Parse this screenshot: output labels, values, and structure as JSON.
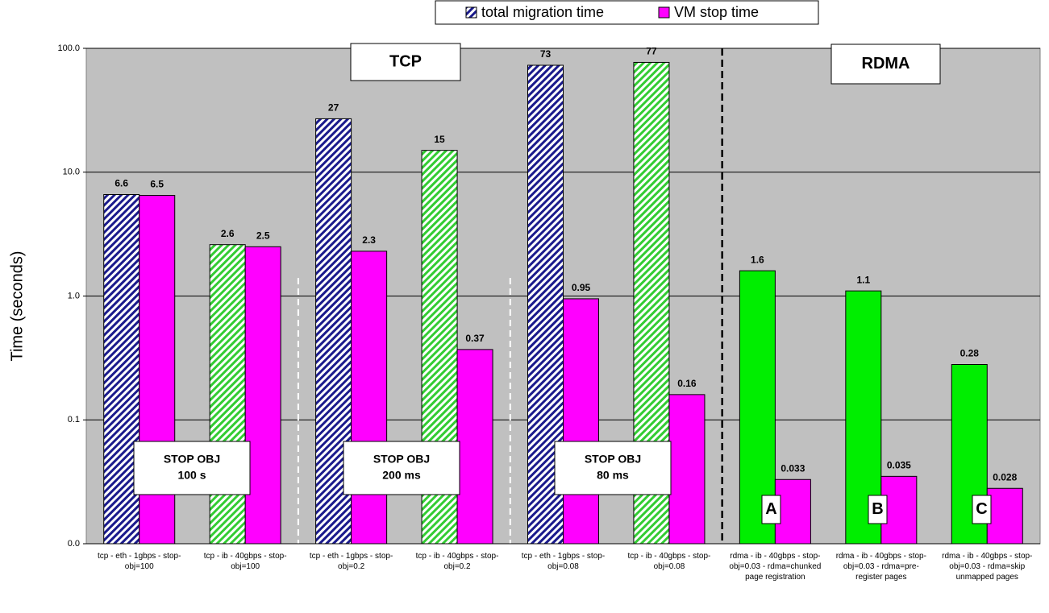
{
  "chart_data": {
    "type": "bar",
    "y_label": "Time  (seconds)",
    "categories": [
      "tcp - eth - 1gbps - stop-obj=100",
      "tcp - ib - 40gbps - stop-obj=100",
      "tcp - eth - 1gbps - stop-obj=0.2",
      "tcp - ib - 40gbps - stop-obj=0.2",
      "tcp - eth - 1gbps - stop-obj=0.08",
      "tcp - ib - 40gbps - stop-obj=0.08",
      "rdma - ib - 40gbps - stop-obj=0.03 - rdma=chunked page registration",
      "rdma - ib - 40gbps - stop-obj=0.03 - rdma=pre-register pages",
      "rdma - ib - 40gbps - stop-obj=0.03 - rdma=skip unmapped pages"
    ],
    "series": [
      {
        "name": "total migration time",
        "color": "#1a1a8c",
        "point_colors": [
          "#1a1a8c",
          "#33cc33",
          "#1a1a8c",
          "#33cc33",
          "#1a1a8c",
          "#33cc33",
          "#00ee00",
          "#00ee00",
          "#00ee00"
        ],
        "hatched": [
          true,
          true,
          true,
          true,
          true,
          true,
          false,
          false,
          false
        ],
        "values": [
          6.6,
          2.6,
          27,
          15,
          73,
          77,
          1.6,
          1.1,
          0.28
        ]
      },
      {
        "name": "VM stop time",
        "color": "#ff00ff",
        "values": [
          6.5,
          2.5,
          2.3,
          0.37,
          0.95,
          0.16,
          0.033,
          0.035,
          0.028
        ]
      }
    ],
    "log_scale": true,
    "ylim": [
      0.01,
      100
    ],
    "yticks": [
      {
        "value": 0.01,
        "label": "0.0"
      },
      {
        "value": 0.1,
        "label": "0.1"
      },
      {
        "value": 1,
        "label": "1.0"
      },
      {
        "value": 10,
        "label": "10.0"
      },
      {
        "value": 100,
        "label": "100.0"
      }
    ],
    "grid": true,
    "legend": "top",
    "annotations": {
      "tcp": "TCP",
      "rdma": "RDMA",
      "stop_boxes": [
        [
          "STOP OBJ",
          "100 s"
        ],
        [
          "STOP OBJ",
          "200 ms"
        ],
        [
          "STOP OBJ",
          "80 ms"
        ]
      ],
      "letters": [
        "A",
        "B",
        "C"
      ]
    }
  }
}
